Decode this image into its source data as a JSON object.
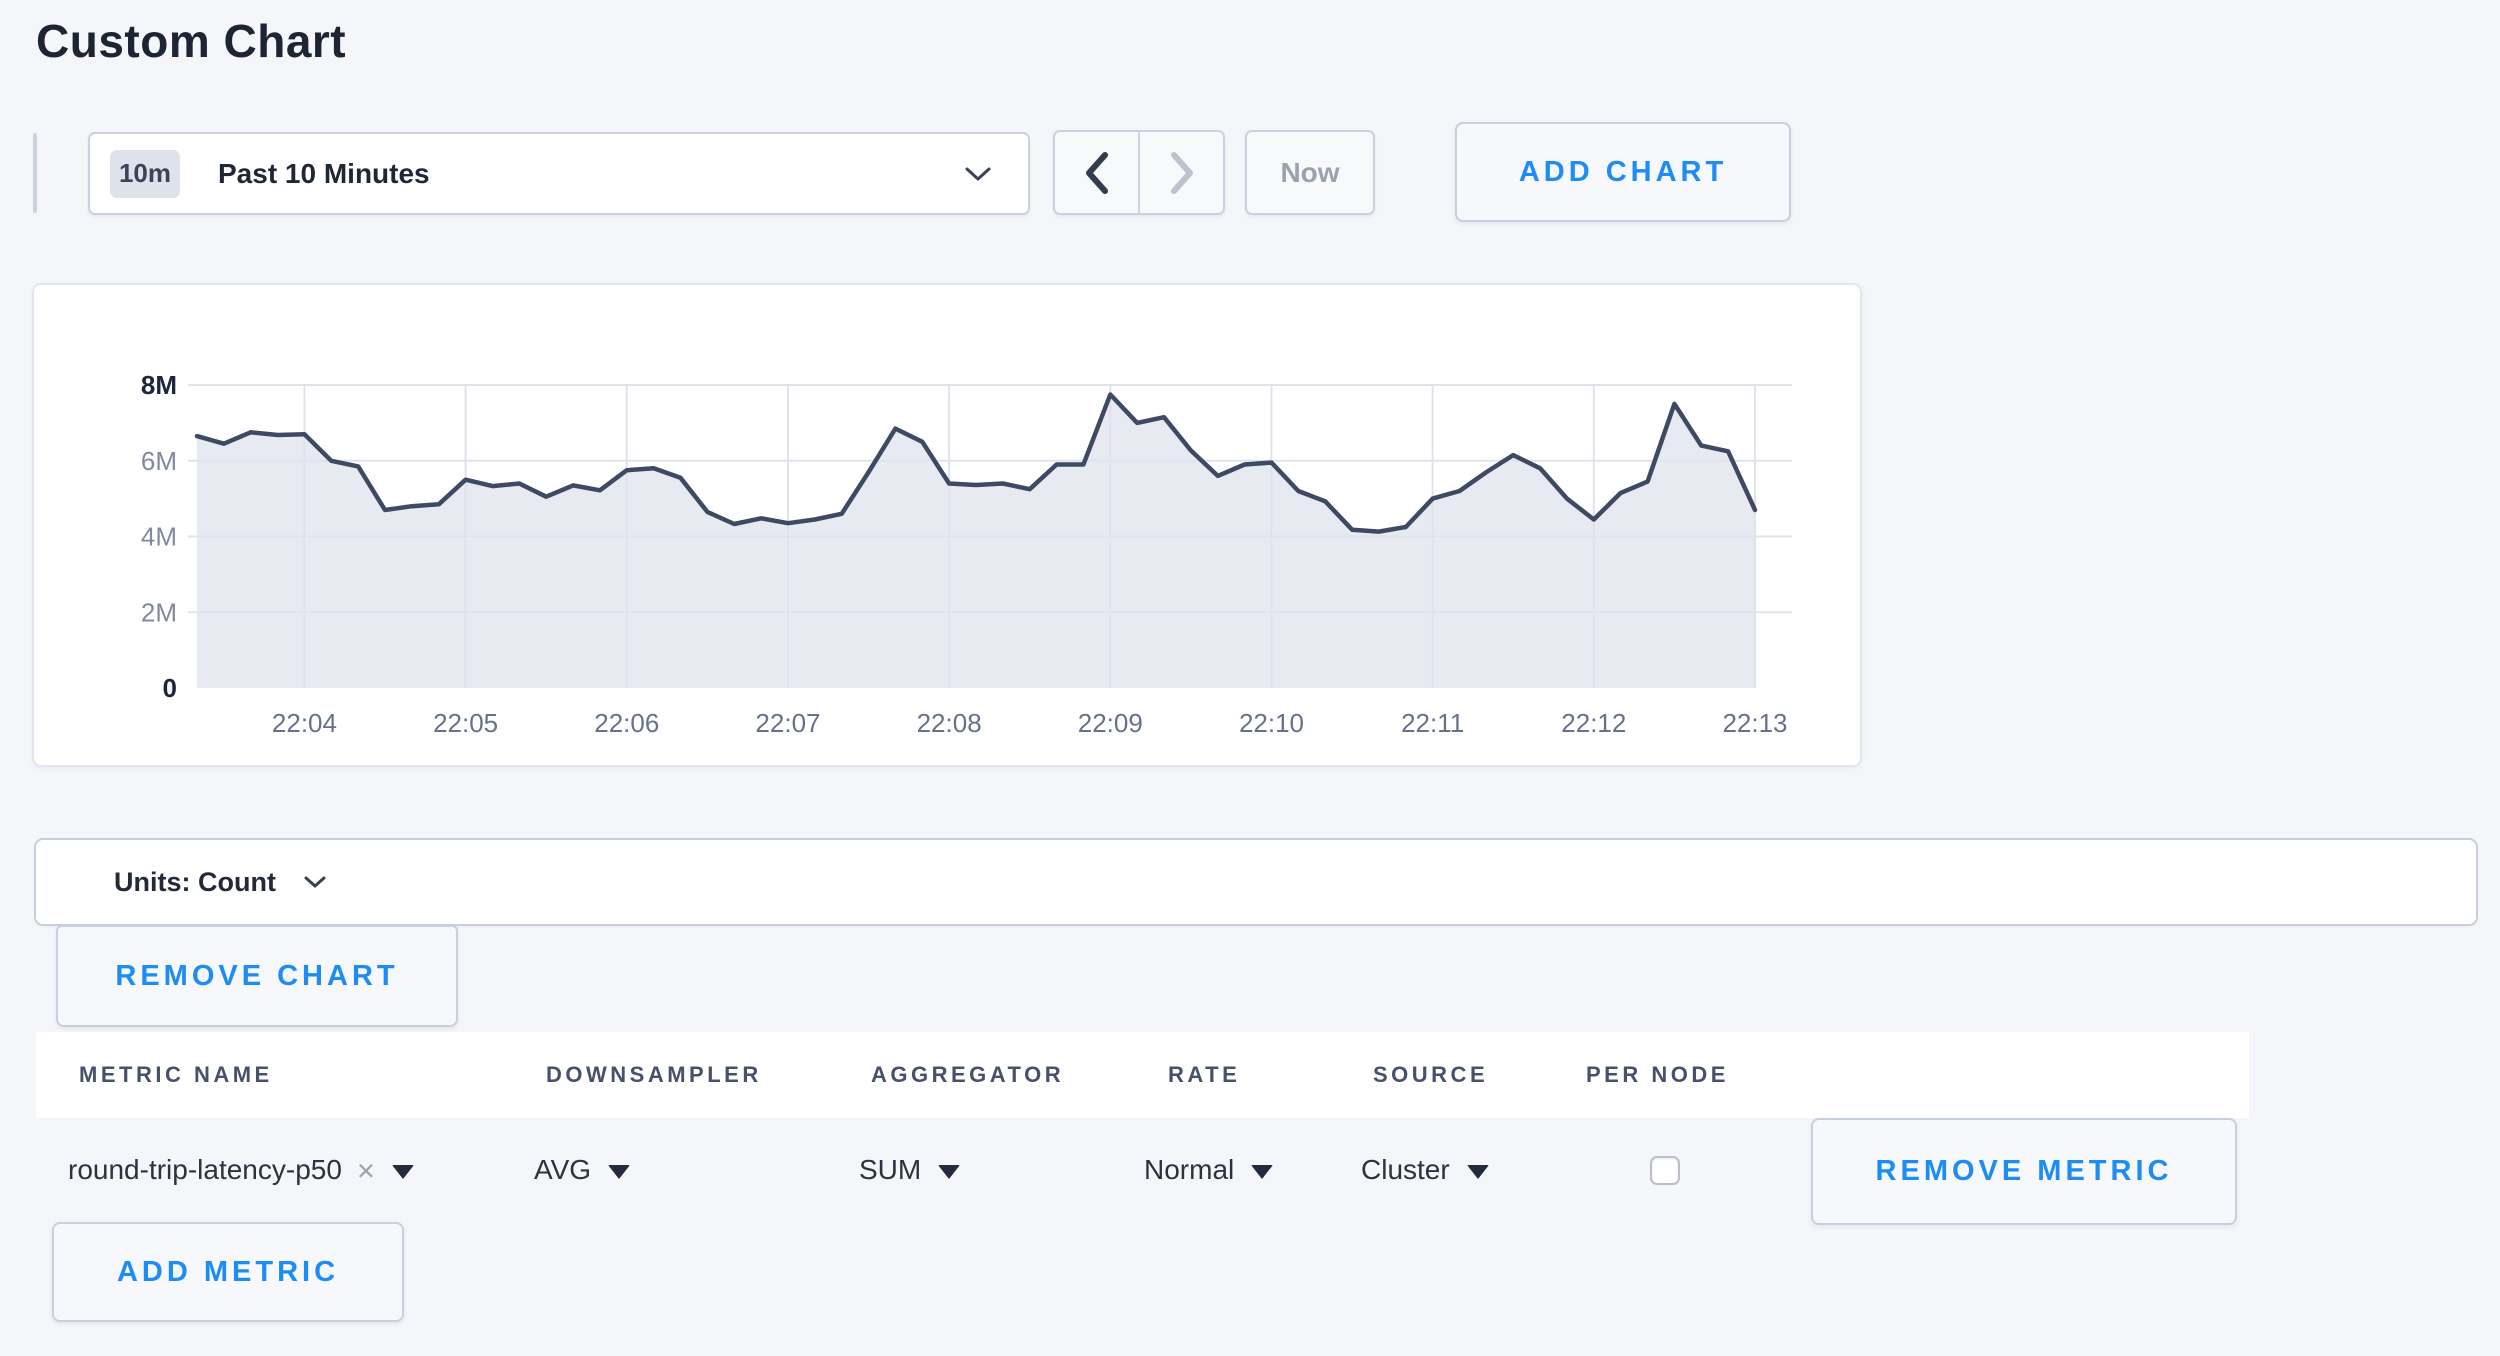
{
  "page": {
    "title": "Custom Chart"
  },
  "toolbar": {
    "range_badge": "10m",
    "range_label": "Past 10 Minutes",
    "now_label": "Now",
    "add_chart_label": "ADD CHART"
  },
  "chart_data": {
    "type": "area",
    "title": "",
    "xlabel": "",
    "ylabel": "",
    "series_name": "round-trip-latency-p50",
    "grid": "on",
    "legend": "none",
    "x_ticks": [
      "22:04",
      "22:05",
      "22:06",
      "22:07",
      "22:08",
      "22:09",
      "22:10",
      "22:11",
      "22:12",
      "22:13"
    ],
    "samples_per_minute": 6,
    "first_tick_sample_index": 4,
    "ylim_millions": [
      0,
      8
    ],
    "y_ticks": [
      {
        "label": "8M",
        "value": 8,
        "strong": true
      },
      {
        "label": "6M",
        "value": 6,
        "strong": false
      },
      {
        "label": "4M",
        "value": 4,
        "strong": false
      },
      {
        "label": "2M",
        "value": 2,
        "strong": false
      },
      {
        "label": "0",
        "value": 0,
        "strong": true
      }
    ],
    "values_millions": [
      6.65,
      6.45,
      6.75,
      6.68,
      6.7,
      6.0,
      5.85,
      4.7,
      4.8,
      4.85,
      5.5,
      5.33,
      5.4,
      5.05,
      5.35,
      5.22,
      5.75,
      5.8,
      5.55,
      4.65,
      4.33,
      4.48,
      4.35,
      4.45,
      4.6,
      5.7,
      6.85,
      6.5,
      5.4,
      5.36,
      5.4,
      5.25,
      5.9,
      5.9,
      7.75,
      7.0,
      7.15,
      6.27,
      5.6,
      5.9,
      5.95,
      5.2,
      4.93,
      4.18,
      4.13,
      4.25,
      5.0,
      5.2,
      5.7,
      6.15,
      5.8,
      5.0,
      4.45,
      5.15,
      5.45,
      7.5,
      6.4,
      6.25,
      4.7
    ],
    "line_color": "#3e4a63",
    "fill_color": "#e8eaf1",
    "grid_color": "#dfe3ec",
    "x_label_color": "#66718a",
    "y_label_color": "#7f8a9e",
    "y_label_strong_color": "#1b2540"
  },
  "units_bar": {
    "label": "Units: Count"
  },
  "actions": {
    "remove_chart_label": "REMOVE CHART",
    "add_metric_label": "ADD METRIC"
  },
  "metrics_table": {
    "headers": [
      "METRIC NAME",
      "DOWNSAMPLER",
      "AGGREGATOR",
      "RATE",
      "SOURCE",
      "PER NODE"
    ],
    "rows": [
      {
        "metric_name": "round-trip-latency-p50",
        "downsampler": "AVG",
        "aggregator": "SUM",
        "rate": "Normal",
        "source": "Cluster",
        "per_node_checked": false,
        "remove_label": "REMOVE METRIC"
      }
    ]
  },
  "colors": {
    "accent_blue": "#1d8cf5"
  }
}
